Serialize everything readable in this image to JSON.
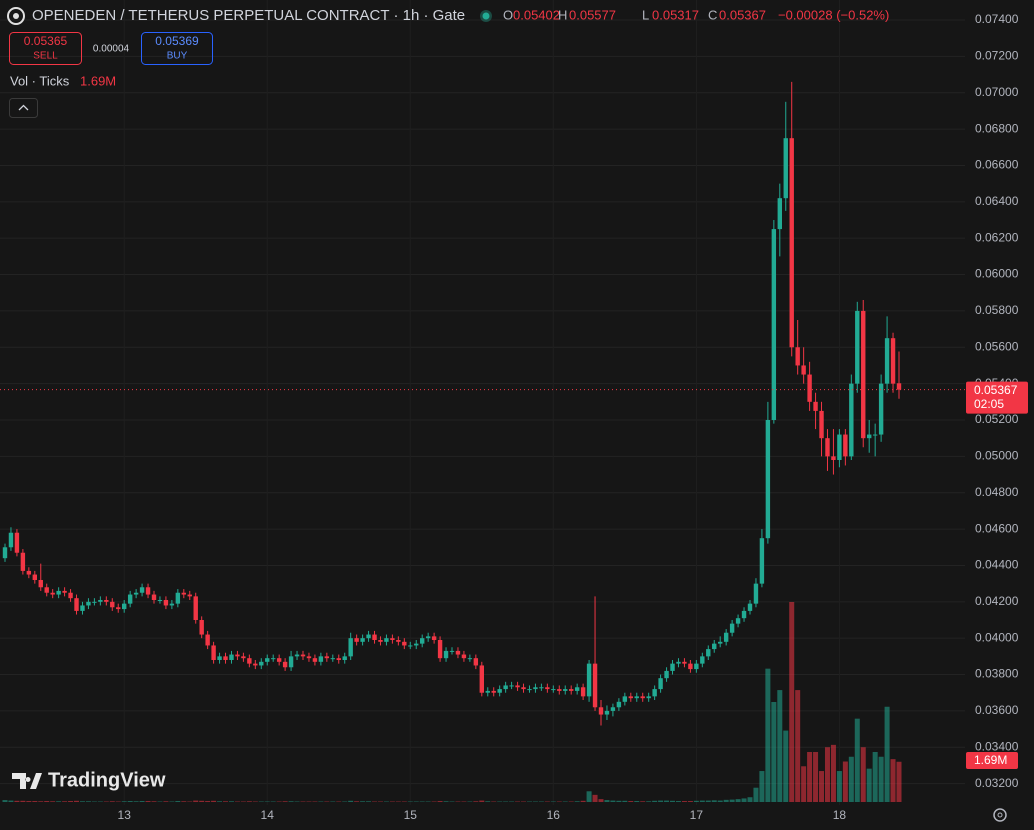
{
  "chart_data": {
    "type": "candlestick",
    "title": "OPENEDEN / TETHERUS PERPETUAL CONTRACT · 1h · Gate",
    "legend_labels": [
      "O",
      "H",
      "L",
      "C"
    ],
    "change": "−0.00028 (−0.52%)",
    "sell_price": 0.05365,
    "sell_label": "SELL",
    "spread": 4e-05,
    "buy_price": 0.05369,
    "buy_label": "BUY",
    "volume_name": "Vol · Ticks",
    "volume_label": "1.69M",
    "countdown": "02:05",
    "watermark": "TradingView",
    "up_color": "#22ab94",
    "down_color": "#f23645",
    "grid": true,
    "ylim": [
      0.0311,
      0.0751
    ],
    "yticks": [
      {
        "value": 0.032,
        "label": "0.03200"
      },
      {
        "value": 0.034,
        "label": "0.03400"
      },
      {
        "value": 0.036,
        "label": "0.03600"
      },
      {
        "value": 0.038,
        "label": "0.03800"
      },
      {
        "value": 0.04,
        "label": "0.04000"
      },
      {
        "value": 0.042,
        "label": "0.04200"
      },
      {
        "value": 0.044,
        "label": "0.04400"
      },
      {
        "value": 0.046,
        "label": "0.04600"
      },
      {
        "value": 0.048,
        "label": "0.04800"
      },
      {
        "value": 0.05,
        "label": "0.05000"
      },
      {
        "value": 0.052,
        "label": "0.05200"
      },
      {
        "value": 0.054,
        "label": "0.05400"
      },
      {
        "value": 0.056,
        "label": "0.05600"
      },
      {
        "value": 0.058,
        "label": "0.05800"
      },
      {
        "value": 0.06,
        "label": "0.06000"
      },
      {
        "value": 0.062,
        "label": "0.06200"
      },
      {
        "value": 0.064,
        "label": "0.06400"
      },
      {
        "value": 0.066,
        "label": "0.06600"
      },
      {
        "value": 0.068,
        "label": "0.06800"
      },
      {
        "value": 0.07,
        "label": "0.07000"
      },
      {
        "value": 0.072,
        "label": "0.07200"
      },
      {
        "value": 0.074,
        "label": "0.07400"
      }
    ],
    "categories": [
      null,
      null,
      null,
      null,
      null,
      null,
      null,
      null,
      null,
      null,
      null,
      null,
      null,
      null,
      null,
      null,
      null,
      null,
      null,
      null,
      "13",
      null,
      null,
      null,
      null,
      null,
      null,
      null,
      null,
      null,
      null,
      null,
      null,
      null,
      null,
      null,
      null,
      null,
      null,
      null,
      null,
      null,
      null,
      null,
      "14",
      null,
      null,
      null,
      null,
      null,
      null,
      null,
      null,
      null,
      null,
      null,
      null,
      null,
      null,
      null,
      null,
      null,
      null,
      null,
      null,
      null,
      null,
      null,
      "15",
      null,
      null,
      null,
      null,
      null,
      null,
      null,
      null,
      null,
      null,
      null,
      null,
      null,
      null,
      null,
      null,
      null,
      null,
      null,
      null,
      null,
      null,
      null,
      "16",
      null,
      null,
      null,
      null,
      null,
      null,
      null,
      null,
      null,
      null,
      null,
      null,
      null,
      null,
      null,
      null,
      null,
      null,
      null,
      null,
      null,
      null,
      null,
      "17",
      null,
      null,
      null,
      null,
      null,
      null,
      null,
      null,
      null,
      null,
      null,
      null,
      null,
      null,
      null,
      null,
      null,
      null,
      null,
      null,
      null,
      null,
      null,
      "18",
      null,
      null,
      null,
      null,
      null,
      null,
      null,
      null,
      null,
      null
    ],
    "ohlc": [
      [
        0.0444,
        0.0452,
        0.0442,
        0.045
      ],
      [
        0.045,
        0.0461,
        0.0448,
        0.0458
      ],
      [
        0.0458,
        0.046,
        0.0445,
        0.0447
      ],
      [
        0.0447,
        0.0449,
        0.0435,
        0.0437
      ],
      [
        0.0437,
        0.0439,
        0.0433,
        0.0435
      ],
      [
        0.0435,
        0.0437,
        0.043,
        0.0432
      ],
      [
        0.0432,
        0.0441,
        0.0426,
        0.0428
      ],
      [
        0.0428,
        0.043,
        0.0423,
        0.0425
      ],
      [
        0.0425,
        0.0427,
        0.0422,
        0.0424
      ],
      [
        0.0424,
        0.0428,
        0.0422,
        0.0426
      ],
      [
        0.0426,
        0.0428,
        0.0423,
        0.0425
      ],
      [
        0.0425,
        0.0427,
        0.042,
        0.0422
      ],
      [
        0.0422,
        0.0424,
        0.0413,
        0.0415
      ],
      [
        0.0415,
        0.042,
        0.0413,
        0.0418
      ],
      [
        0.0418,
        0.0422,
        0.0416,
        0.042
      ],
      [
        0.042,
        0.0422,
        0.0418,
        0.042
      ],
      [
        0.042,
        0.0423,
        0.0418,
        0.0421
      ],
      [
        0.0421,
        0.0423,
        0.0418,
        0.042
      ],
      [
        0.042,
        0.0422,
        0.0415,
        0.0417
      ],
      [
        0.0417,
        0.0419,
        0.0414,
        0.0416
      ],
      [
        0.0416,
        0.0421,
        0.0414,
        0.0419
      ],
      [
        0.0419,
        0.0426,
        0.0417,
        0.0424
      ],
      [
        0.0424,
        0.0427,
        0.0422,
        0.0425
      ],
      [
        0.0425,
        0.043,
        0.0423,
        0.0428
      ],
      [
        0.0428,
        0.043,
        0.0422,
        0.0424
      ],
      [
        0.0424,
        0.0426,
        0.0419,
        0.0421
      ],
      [
        0.0421,
        0.0423,
        0.0419,
        0.0421
      ],
      [
        0.0421,
        0.0423,
        0.0416,
        0.0418
      ],
      [
        0.0418,
        0.0421,
        0.0416,
        0.0419
      ],
      [
        0.0419,
        0.0427,
        0.0417,
        0.0425
      ],
      [
        0.0425,
        0.0427,
        0.0422,
        0.0424
      ],
      [
        0.0424,
        0.0426,
        0.0421,
        0.0423
      ],
      [
        0.0423,
        0.0425,
        0.0408,
        0.041
      ],
      [
        0.041,
        0.0412,
        0.04,
        0.0402
      ],
      [
        0.0402,
        0.0404,
        0.0394,
        0.0396
      ],
      [
        0.0396,
        0.0398,
        0.0386,
        0.0388
      ],
      [
        0.0388,
        0.0392,
        0.0386,
        0.039
      ],
      [
        0.039,
        0.0392,
        0.0386,
        0.0388
      ],
      [
        0.0388,
        0.0393,
        0.0386,
        0.0391
      ],
      [
        0.0391,
        0.0393,
        0.0388,
        0.039
      ],
      [
        0.039,
        0.0392,
        0.0387,
        0.0389
      ],
      [
        0.0389,
        0.0391,
        0.0384,
        0.0386
      ],
      [
        0.0386,
        0.0388,
        0.0383,
        0.0385
      ],
      [
        0.0385,
        0.0389,
        0.0383,
        0.0387
      ],
      [
        0.0387,
        0.0391,
        0.0385,
        0.0389
      ],
      [
        0.0389,
        0.0391,
        0.0387,
        0.0389
      ],
      [
        0.0389,
        0.0391,
        0.0385,
        0.0387
      ],
      [
        0.0387,
        0.0389,
        0.0382,
        0.0384
      ],
      [
        0.0384,
        0.0393,
        0.0382,
        0.039
      ],
      [
        0.039,
        0.0393,
        0.0388,
        0.0391
      ],
      [
        0.0391,
        0.0393,
        0.0388,
        0.039
      ],
      [
        0.039,
        0.0392,
        0.0387,
        0.0389
      ],
      [
        0.0389,
        0.0391,
        0.0385,
        0.0387
      ],
      [
        0.0387,
        0.0392,
        0.0385,
        0.039
      ],
      [
        0.039,
        0.0392,
        0.0387,
        0.0389
      ],
      [
        0.0389,
        0.0391,
        0.0387,
        0.0389
      ],
      [
        0.0389,
        0.0391,
        0.0386,
        0.0388
      ],
      [
        0.0388,
        0.0392,
        0.0386,
        0.039
      ],
      [
        0.039,
        0.0403,
        0.0388,
        0.04
      ],
      [
        0.04,
        0.0402,
        0.0396,
        0.0398
      ],
      [
        0.0398,
        0.0402,
        0.0396,
        0.04
      ],
      [
        0.04,
        0.0404,
        0.0398,
        0.0402
      ],
      [
        0.0402,
        0.0404,
        0.0397,
        0.0399
      ],
      [
        0.0399,
        0.0401,
        0.0396,
        0.0398
      ],
      [
        0.0398,
        0.0402,
        0.0396,
        0.04
      ],
      [
        0.04,
        0.0402,
        0.0397,
        0.0399
      ],
      [
        0.0399,
        0.0401,
        0.0396,
        0.0398
      ],
      [
        0.0398,
        0.04,
        0.0394,
        0.0396
      ],
      [
        0.0396,
        0.0398,
        0.0394,
        0.0396
      ],
      [
        0.0396,
        0.0399,
        0.0394,
        0.0397
      ],
      [
        0.0397,
        0.0402,
        0.0395,
        0.04
      ],
      [
        0.04,
        0.0403,
        0.0398,
        0.0401
      ],
      [
        0.0401,
        0.0403,
        0.0397,
        0.0399
      ],
      [
        0.0399,
        0.0401,
        0.0387,
        0.0389
      ],
      [
        0.0389,
        0.0395,
        0.0387,
        0.0393
      ],
      [
        0.0393,
        0.0395,
        0.0391,
        0.0393
      ],
      [
        0.0393,
        0.0395,
        0.0389,
        0.0391
      ],
      [
        0.0391,
        0.0393,
        0.0387,
        0.0389
      ],
      [
        0.0389,
        0.0391,
        0.0387,
        0.0389
      ],
      [
        0.0389,
        0.0391,
        0.0383,
        0.0385
      ],
      [
        0.0385,
        0.0387,
        0.0368,
        0.037
      ],
      [
        0.037,
        0.0373,
        0.0368,
        0.0371
      ],
      [
        0.0371,
        0.0373,
        0.0368,
        0.037
      ],
      [
        0.037,
        0.0374,
        0.0368,
        0.0372
      ],
      [
        0.0372,
        0.0376,
        0.037,
        0.0374
      ],
      [
        0.0374,
        0.0376,
        0.0372,
        0.0374
      ],
      [
        0.0374,
        0.0376,
        0.0371,
        0.0373
      ],
      [
        0.0373,
        0.0375,
        0.037,
        0.0372
      ],
      [
        0.0372,
        0.0374,
        0.037,
        0.0372
      ],
      [
        0.0372,
        0.0375,
        0.037,
        0.0373
      ],
      [
        0.0373,
        0.0375,
        0.0371,
        0.0373
      ],
      [
        0.0373,
        0.0375,
        0.037,
        0.0372
      ],
      [
        0.0372,
        0.0374,
        0.037,
        0.0372
      ],
      [
        0.0372,
        0.0374,
        0.0369,
        0.0371
      ],
      [
        0.0371,
        0.0374,
        0.0369,
        0.0372
      ],
      [
        0.0372,
        0.0374,
        0.0369,
        0.0371
      ],
      [
        0.0371,
        0.0375,
        0.0369,
        0.0373
      ],
      [
        0.0373,
        0.0375,
        0.0366,
        0.0368
      ],
      [
        0.0368,
        0.0388,
        0.0365,
        0.0386
      ],
      [
        0.0386,
        0.0423,
        0.036,
        0.0362
      ],
      [
        0.0362,
        0.0366,
        0.0352,
        0.0358
      ],
      [
        0.0358,
        0.0363,
        0.0355,
        0.036
      ],
      [
        0.036,
        0.0364,
        0.0357,
        0.0362
      ],
      [
        0.0362,
        0.0367,
        0.036,
        0.0365
      ],
      [
        0.0365,
        0.037,
        0.0363,
        0.0368
      ],
      [
        0.0368,
        0.037,
        0.0365,
        0.0367
      ],
      [
        0.0367,
        0.037,
        0.0365,
        0.0368
      ],
      [
        0.0368,
        0.037,
        0.0365,
        0.0367
      ],
      [
        0.0367,
        0.037,
        0.0365,
        0.0368
      ],
      [
        0.0368,
        0.0374,
        0.0366,
        0.0372
      ],
      [
        0.0372,
        0.038,
        0.037,
        0.0378
      ],
      [
        0.0378,
        0.0384,
        0.0376,
        0.0382
      ],
      [
        0.0382,
        0.0388,
        0.038,
        0.0386
      ],
      [
        0.0386,
        0.0389,
        0.0384,
        0.0387
      ],
      [
        0.0387,
        0.0389,
        0.0384,
        0.0386
      ],
      [
        0.0386,
        0.0388,
        0.0381,
        0.0383
      ],
      [
        0.0383,
        0.0388,
        0.0381,
        0.0386
      ],
      [
        0.0386,
        0.0392,
        0.0384,
        0.039
      ],
      [
        0.039,
        0.0396,
        0.0388,
        0.0394
      ],
      [
        0.0394,
        0.0399,
        0.0392,
        0.0397
      ],
      [
        0.0397,
        0.0401,
        0.0395,
        0.0398
      ],
      [
        0.0398,
        0.0405,
        0.0396,
        0.0403
      ],
      [
        0.0403,
        0.041,
        0.0401,
        0.0408
      ],
      [
        0.0408,
        0.0413,
        0.0406,
        0.0411
      ],
      [
        0.0411,
        0.0417,
        0.0409,
        0.0415
      ],
      [
        0.0415,
        0.0421,
        0.0413,
        0.0419
      ],
      [
        0.0419,
        0.0433,
        0.0417,
        0.043
      ],
      [
        0.043,
        0.046,
        0.0428,
        0.0455
      ],
      [
        0.0455,
        0.053,
        0.0452,
        0.052
      ],
      [
        0.052,
        0.063,
        0.0518,
        0.0625
      ],
      [
        0.0625,
        0.065,
        0.061,
        0.0642
      ],
      [
        0.0642,
        0.0695,
        0.0635,
        0.0675
      ],
      [
        0.0675,
        0.0706,
        0.0555,
        0.056
      ],
      [
        0.056,
        0.0575,
        0.0545,
        0.055
      ],
      [
        0.055,
        0.056,
        0.054,
        0.0545
      ],
      [
        0.0545,
        0.0552,
        0.0525,
        0.053
      ],
      [
        0.053,
        0.0535,
        0.0515,
        0.0525
      ],
      [
        0.0525,
        0.053,
        0.05,
        0.051
      ],
      [
        0.051,
        0.0515,
        0.0492,
        0.05
      ],
      [
        0.05,
        0.0515,
        0.049,
        0.0498
      ],
      [
        0.0498,
        0.0515,
        0.0494,
        0.0512
      ],
      [
        0.0512,
        0.0515,
        0.0495,
        0.05
      ],
      [
        0.05,
        0.0545,
        0.0498,
        0.054
      ],
      [
        0.054,
        0.0585,
        0.0535,
        0.058
      ],
      [
        0.058,
        0.0586,
        0.0505,
        0.051
      ],
      [
        0.051,
        0.052,
        0.0502,
        0.0512
      ],
      [
        0.0512,
        0.0518,
        0.05,
        0.0512
      ],
      [
        0.0512,
        0.0545,
        0.0508,
        0.054
      ],
      [
        0.054,
        0.0577,
        0.0535,
        0.0565
      ],
      [
        0.0565,
        0.0568,
        0.0535,
        0.054
      ],
      [
        0.05402,
        0.05577,
        0.05317,
        0.05367
      ]
    ],
    "volume": [
      0.08,
      0.06,
      0.05,
      0.05,
      0.04,
      0.04,
      0.03,
      0.04,
      0.03,
      0.03,
      0.03,
      0.04,
      0.05,
      0.03,
      0.03,
      0.02,
      0.02,
      0.02,
      0.03,
      0.02,
      0.03,
      0.04,
      0.03,
      0.04,
      0.04,
      0.03,
      0.02,
      0.03,
      0.02,
      0.04,
      0.03,
      0.02,
      0.06,
      0.05,
      0.04,
      0.05,
      0.03,
      0.03,
      0.03,
      0.02,
      0.02,
      0.03,
      0.02,
      0.02,
      0.02,
      0.02,
      0.02,
      0.03,
      0.03,
      0.02,
      0.02,
      0.02,
      0.02,
      0.02,
      0.02,
      0.02,
      0.02,
      0.02,
      0.05,
      0.03,
      0.03,
      0.03,
      0.02,
      0.02,
      0.02,
      0.02,
      0.02,
      0.02,
      0.02,
      0.02,
      0.02,
      0.02,
      0.02,
      0.04,
      0.03,
      0.02,
      0.02,
      0.02,
      0.02,
      0.03,
      0.06,
      0.03,
      0.02,
      0.02,
      0.02,
      0.02,
      0.02,
      0.02,
      0.02,
      0.02,
      0.02,
      0.02,
      0.02,
      0.02,
      0.02,
      0.02,
      0.03,
      0.05,
      0.45,
      0.3,
      0.12,
      0.08,
      0.06,
      0.05,
      0.05,
      0.04,
      0.04,
      0.03,
      0.03,
      0.05,
      0.06,
      0.06,
      0.05,
      0.04,
      0.04,
      0.04,
      0.05,
      0.06,
      0.06,
      0.07,
      0.06,
      0.09,
      0.1,
      0.12,
      0.15,
      0.2,
      0.6,
      1.3,
      5.6,
      4.2,
      4.7,
      3.0,
      8.4,
      4.7,
      1.5,
      2.1,
      2.1,
      1.3,
      2.3,
      2.4,
      1.3,
      1.7,
      1.9,
      3.5,
      2.3,
      1.4,
      2.1,
      1.9,
      4.0,
      1.8,
      1.69
    ]
  }
}
